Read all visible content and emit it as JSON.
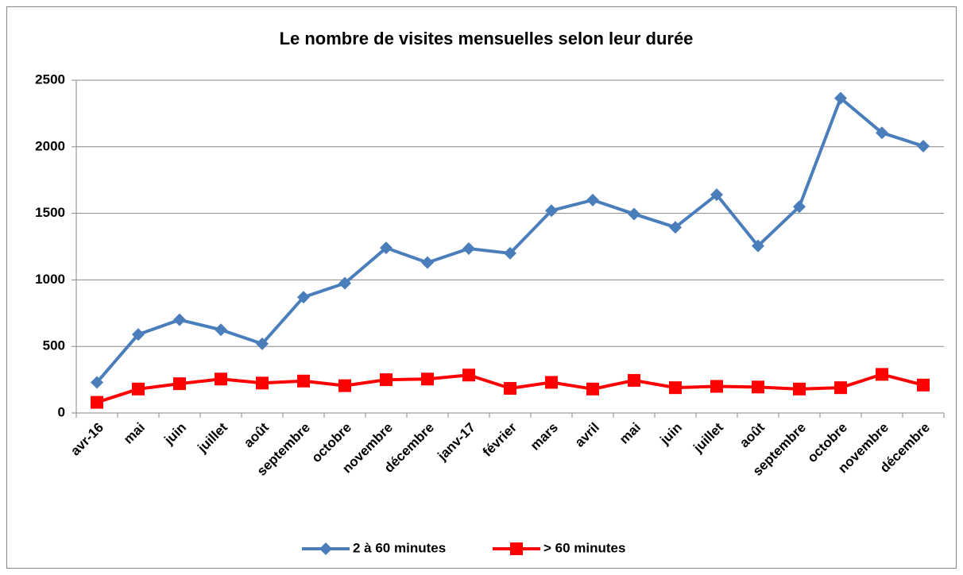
{
  "chart_data": {
    "type": "line",
    "title": "Le nombre de visites mensuelles selon leur durée",
    "categories": [
      "avr-16",
      "mai",
      "juin",
      "juillet",
      "août",
      "septembre",
      "octobre",
      "novembre",
      "décembre",
      "janv-17",
      "février",
      "mars",
      "avril",
      "mai",
      "juin",
      "juillet",
      "août",
      "septembre",
      "octobre",
      "novembre",
      "décembre"
    ],
    "series": [
      {
        "name": "2 à 60 minutes",
        "color": "#4a7ebb",
        "marker": "diamond",
        "values": [
          230,
          590,
          700,
          625,
          520,
          870,
          975,
          1240,
          1130,
          1235,
          1200,
          1520,
          1600,
          1495,
          1395,
          1640,
          1255,
          1550,
          2365,
          2105,
          2005
        ]
      },
      {
        "name": "> 60 minutes",
        "color": "#ff0000",
        "marker": "square",
        "values": [
          80,
          180,
          220,
          255,
          225,
          240,
          205,
          250,
          255,
          285,
          185,
          230,
          180,
          245,
          190,
          200,
          195,
          180,
          190,
          290,
          210
        ]
      }
    ],
    "ylim": [
      0,
      2500
    ],
    "yticks": [
      0,
      500,
      1000,
      1500,
      2000,
      2500
    ],
    "grid": true,
    "legend": "bottom"
  }
}
